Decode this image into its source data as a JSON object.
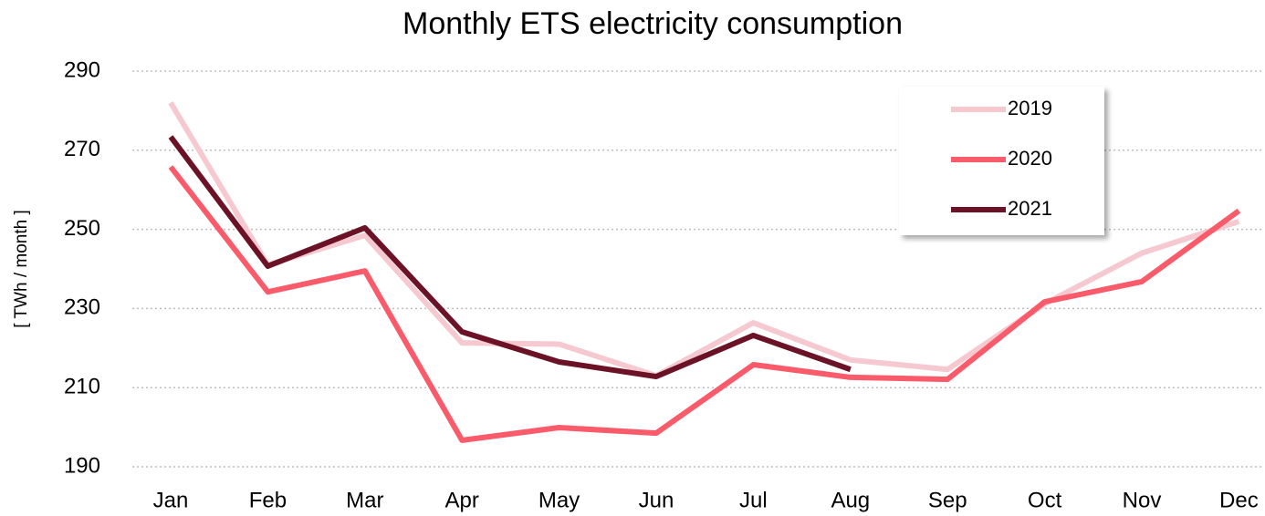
{
  "chart_data": {
    "type": "line",
    "title": "Monthly ETS electricity consumption",
    "y_label": "[ TWh / month ]",
    "categories": [
      "Jan",
      "Feb",
      "Mar",
      "Apr",
      "May",
      "Jun",
      "Jul",
      "Aug",
      "Sep",
      "Oct",
      "Nov",
      "Dec"
    ],
    "series": [
      {
        "name": "2019",
        "color": "#f6c9d0",
        "values": [
          282,
          241,
          248.5,
          221.3,
          221,
          213,
          226.4,
          217,
          214.6,
          231.2,
          244,
          252
        ]
      },
      {
        "name": "2020",
        "color": "#f95b6b",
        "values": [
          265.8,
          234.2,
          239.5,
          196.7,
          199.9,
          198.5,
          215.8,
          212.6,
          212.1,
          231.7,
          236.8,
          254.7
        ]
      },
      {
        "name": "2021",
        "color": "#6b1226",
        "values": [
          273.4,
          240.7,
          250.4,
          224.1,
          216.5,
          212.8,
          223.2,
          214.6,
          null,
          null,
          null,
          null
        ]
      }
    ],
    "ylim": [
      190,
      290
    ],
    "yticks": [
      190,
      210,
      230,
      250,
      270,
      290
    ],
    "grid": true,
    "legend": "upper right"
  }
}
